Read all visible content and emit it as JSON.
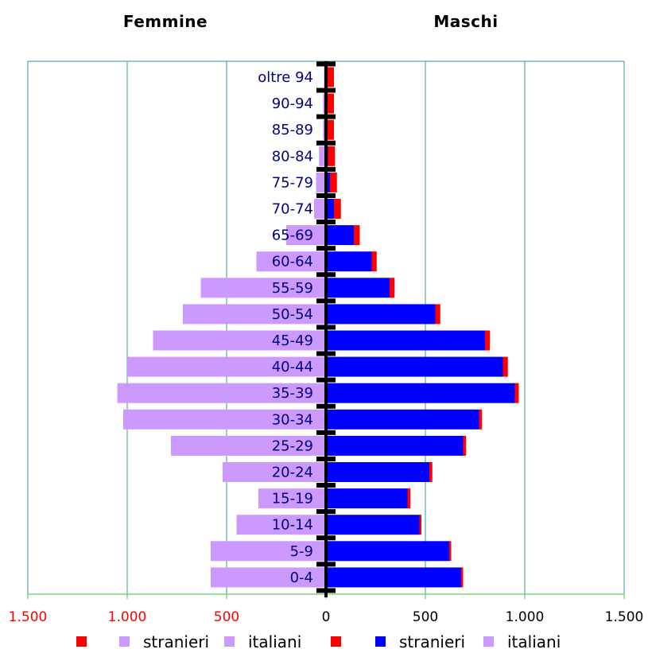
{
  "chart_data": {
    "type": "bar",
    "orientation": "horizontal-pyramid",
    "left_title": "Femmine",
    "right_title": "Maschi",
    "categories": [
      "oltre 94",
      "90-94",
      "85-89",
      "80-84",
      "75-79",
      "70-74",
      "65-69",
      "60-64",
      "55-59",
      "50-54",
      "45-49",
      "40-44",
      "35-39",
      "30-34",
      "25-29",
      "20-24",
      "15-19",
      "10-14",
      "5-9",
      "0-4"
    ],
    "x_ticks": [
      "1.500",
      "1.000",
      "500",
      "0",
      "500",
      "1.000",
      "1.500"
    ],
    "xlim": [
      -1500,
      1500
    ],
    "tick_colors": {
      "negative": "#ff0000",
      "positive": "#000000"
    },
    "grid": true,
    "series": [
      {
        "side": "female",
        "color": "#cc99ff",
        "values": [
          10,
          15,
          15,
          35,
          50,
          60,
          200,
          350,
          630,
          720,
          870,
          1000,
          1050,
          1020,
          780,
          520,
          340,
          450,
          580,
          580
        ]
      },
      {
        "side": "male",
        "color": "#0000ff",
        "values": [
          0,
          0,
          0,
          10,
          20,
          40,
          140,
          230,
          320,
          550,
          800,
          890,
          950,
          770,
          690,
          520,
          410,
          470,
          620,
          680
        ]
      },
      {
        "side": "male",
        "color": "#ff0000",
        "values": [
          40,
          40,
          40,
          35,
          35,
          35,
          30,
          25,
          25,
          25,
          25,
          25,
          20,
          15,
          15,
          15,
          15,
          10,
          10,
          10
        ]
      }
    ],
    "legend": [
      {
        "label": "",
        "color": "#ff0000"
      },
      {
        "label": "stranieri",
        "color": "#cc99ff"
      },
      {
        "label": "italiani",
        "color": "#cc99ff"
      },
      {
        "label": "",
        "color": "#ff0000"
      },
      {
        "label": "stranieri",
        "color": "#0000ff"
      },
      {
        "label": "italiani",
        "color": "#cc99ff"
      }
    ]
  }
}
